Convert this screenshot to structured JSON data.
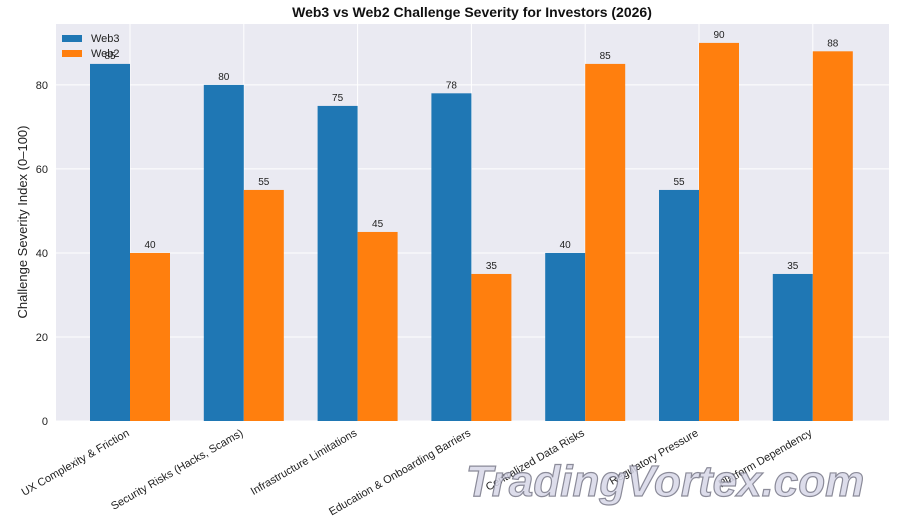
{
  "chart_data": {
    "type": "bar",
    "title": "Web3 vs Web2 Challenge Severity for Investors (2026)",
    "xlabel": "",
    "ylabel": "Challenge Severity Index (0–100)",
    "categories": [
      "UX Complexity & Friction",
      "Security Risks (Hacks, Scams)",
      "Infrastructure Limitations",
      "Education & Onboarding Barriers",
      "Centralized Data Risks",
      "Regulatory Pressure",
      "Platform Dependency"
    ],
    "series": [
      {
        "name": "Web3",
        "color": "#1f77b4",
        "values": [
          85,
          80,
          75,
          78,
          40,
          55,
          35
        ]
      },
      {
        "name": "Web2",
        "color": "#ff7f0e",
        "values": [
          40,
          55,
          45,
          35,
          85,
          90,
          88
        ]
      }
    ],
    "ylim": [
      0,
      94.5
    ],
    "yticks": [
      0,
      20,
      40,
      60,
      80
    ],
    "grid": true,
    "legend_position": "top-left",
    "background_color": "#eaeaf2"
  },
  "watermark": {
    "text": "TradingVortex.com"
  }
}
